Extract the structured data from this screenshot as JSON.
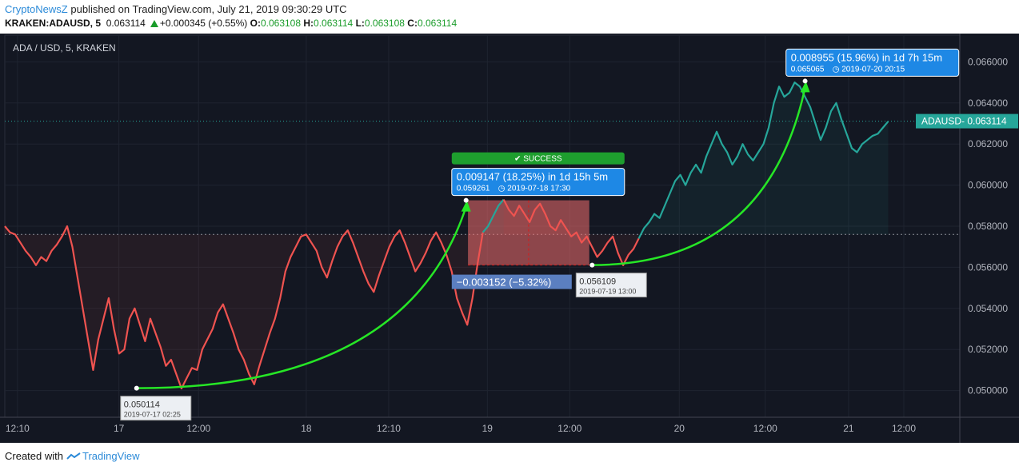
{
  "header": {
    "brand": "CryptoNewsZ",
    "published_text": " published on TradingView.com, July 21, 2019 09:30:29 UTC",
    "symbol": "KRAKEN:ADAUSD, 5",
    "last": "0.063114",
    "change": "+0.000345 (+0.55%)",
    "o_label": "O:",
    "o_value": "0.063108",
    "h_label": "H:",
    "h_value": "0.063114",
    "l_label": "L:",
    "l_value": "0.063108",
    "c_label": "C:",
    "c_value": "0.063114"
  },
  "footer": {
    "created_with": "Created with",
    "tradingview": "TradingView"
  },
  "colors": {
    "background": "#131722",
    "up_line": "#26a69a",
    "down_line": "#ef5350",
    "arrow": "#26e626",
    "callout_blue": "#1e88e5",
    "success_green": "#1e9e2e",
    "range_red": "#f26d6d",
    "price_label": "#26a69a"
  },
  "chart_data": {
    "type": "line",
    "title": "ADA / USD, 5, KRAKEN",
    "xlabel": "",
    "ylabel": "",
    "ylim": [
      0.0487,
      0.0673
    ],
    "x_ticks": [
      "12:10",
      "17",
      "12:00",
      "18",
      "12:10",
      "19",
      "12:00",
      "20",
      "12:00",
      "21",
      "12:00"
    ],
    "y_ticks": [
      "0.066000",
      "0.064000",
      "0.062000",
      "0.060000",
      "0.058000",
      "0.056000",
      "0.054000",
      "0.052000",
      "0.050000"
    ],
    "grid": true,
    "reference_level": 0.0576,
    "current_price": {
      "label": "ADAUSD",
      "value": "0.063114",
      "y": 0.063114
    },
    "series": [
      {
        "segments": [
          {
            "trend": "down",
            "y": [
              0.058,
              0.0577,
              0.0576,
              0.0572,
              0.0568,
              0.0565,
              0.0561,
              0.0565,
              0.0563,
              0.0568,
              0.0571,
              0.0575,
              0.058,
              0.057,
              0.0555,
              0.054,
              0.0525,
              0.051,
              0.0525,
              0.0535,
              0.0545,
              0.053,
              0.0518,
              0.052,
              0.0535,
              0.054,
              0.0532,
              0.0524,
              0.0535,
              0.0528,
              0.0521,
              0.0512,
              0.0515,
              0.0508,
              0.0501,
              0.0506,
              0.0511,
              0.051,
              0.052,
              0.0525,
              0.053,
              0.0538,
              0.0542,
              0.0535,
              0.0528,
              0.052,
              0.0515,
              0.0508,
              0.0503,
              0.0512,
              0.052,
              0.0528,
              0.0535,
              0.0545,
              0.0558,
              0.0565,
              0.057,
              0.0575,
              0.0576,
              0.0572,
              0.0568,
              0.056,
              0.0555,
              0.0563,
              0.057,
              0.0575,
              0.0578,
              0.0572,
              0.0565,
              0.0558,
              0.0552,
              0.0548,
              0.0556,
              0.0563,
              0.057,
              0.0575,
              0.0578,
              0.0572,
              0.0565,
              0.0558,
              0.0562,
              0.0567,
              0.0573,
              0.0577,
              0.0572,
              0.0566,
              0.0558,
              0.0545,
              0.0538,
              0.0532,
              0.0545,
              0.0562,
              0.0577
            ]
          },
          {
            "trend": "up",
            "y": [
              0.0577,
              0.058,
              0.0585,
              0.059,
              0.0593
            ]
          },
          {
            "trend": "down",
            "y": [
              0.0593,
              0.0588,
              0.0585,
              0.059,
              0.0586,
              0.0582,
              0.0588,
              0.0591,
              0.0586,
              0.058,
              0.0578,
              0.0583,
              0.0579,
              0.0575,
              0.0577,
              0.0572,
              0.0575,
              0.057,
              0.0565,
              0.0568,
              0.0572,
              0.0575,
              0.0567,
              0.0561,
              0.0566,
              0.0569,
              0.0574
            ]
          },
          {
            "trend": "up",
            "y": [
              0.0574,
              0.0579,
              0.0582,
              0.0586,
              0.0584,
              0.059,
              0.0596,
              0.0602,
              0.0605,
              0.06,
              0.0606,
              0.061,
              0.0606,
              0.0614,
              0.062,
              0.0626,
              0.062,
              0.0616,
              0.061,
              0.0614,
              0.062,
              0.0615,
              0.0612,
              0.0616,
              0.062,
              0.0628,
              0.064,
              0.0648,
              0.0643,
              0.0645,
              0.065,
              0.0648,
              0.0643,
              0.0638,
              0.063,
              0.0622,
              0.0628,
              0.0636,
              0.064,
              0.0632,
              0.0625,
              0.0618,
              0.0616,
              0.062,
              0.0622,
              0.0624,
              0.0625,
              0.0628,
              0.0631
            ]
          }
        ]
      }
    ],
    "annotations": [
      {
        "type": "arrow",
        "x_pct": [
          0.13,
          0.49
        ],
        "y": [
          0.050114,
          0.059261
        ]
      },
      {
        "type": "arrow",
        "x_pct": [
          0.62,
          0.84
        ],
        "y": [
          0.056109,
          0.065065
        ]
      },
      {
        "type": "point_label",
        "value": "0.050114",
        "date": "2019-07-17 02:25",
        "y": 0.050114
      },
      {
        "type": "point_label",
        "value": "0.056109",
        "date": "2019-07-19 13:00",
        "y": 0.056109
      },
      {
        "type": "callout",
        "badge": "SUCCESS",
        "change": "0.009147 (18.25%)",
        "duration": "in 1d 15h 5m",
        "price": "0.059261",
        "date": "2019-07-18",
        "time": "17:30",
        "y": 0.059261
      },
      {
        "type": "callout",
        "change": "0.008955 (15.96%)",
        "duration": "in 1d 7h 15m",
        "price": "0.065065",
        "date": "2019-07-20",
        "time": "20:15",
        "y": 0.065065
      },
      {
        "type": "range",
        "change": "−0.003152 (−5.32%)",
        "from": 0.059261,
        "to": 0.056109
      }
    ]
  }
}
